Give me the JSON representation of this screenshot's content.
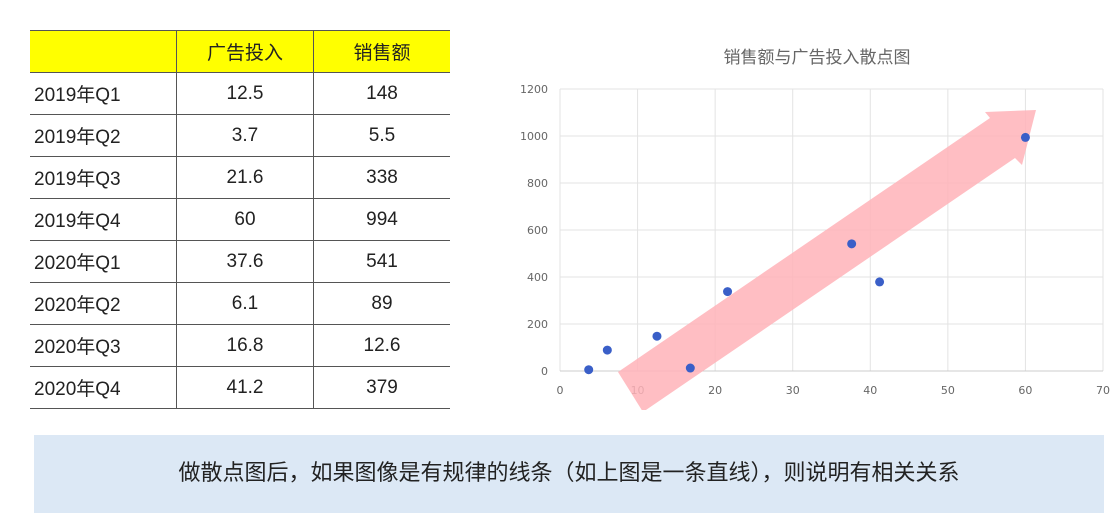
{
  "table": {
    "headers": [
      "",
      "广告投入",
      "销售额"
    ],
    "rows": [
      [
        "2019年Q1",
        "12.5",
        "148"
      ],
      [
        "2019年Q2",
        "3.7",
        "5.5"
      ],
      [
        "2019年Q3",
        "21.6",
        "338"
      ],
      [
        "2019年Q4",
        "60",
        "994"
      ],
      [
        "2020年Q1",
        "37.6",
        "541"
      ],
      [
        "2020年Q2",
        "6.1",
        "89"
      ],
      [
        "2020年Q3",
        "16.8",
        "12.6"
      ],
      [
        "2020年Q4",
        "41.2",
        "379"
      ]
    ]
  },
  "chart_data": {
    "type": "scatter",
    "title": "销售额与广告投入散点图",
    "xlim": [
      0,
      70
    ],
    "ylim": [
      0,
      1200
    ],
    "xticks": [
      "0",
      "10",
      "20",
      "30",
      "40",
      "50",
      "60",
      "70"
    ],
    "yticks": [
      "0",
      "200",
      "400",
      "600",
      "800",
      "1000",
      "1200"
    ],
    "grid": true,
    "point_color": "#3a5fc8",
    "annotation": "upward trend arrow",
    "arrow_color": "#ffb3b8",
    "points": [
      [
        12.5,
        148
      ],
      [
        3.7,
        5.5
      ],
      [
        21.6,
        338
      ],
      [
        60,
        994
      ],
      [
        37.6,
        541
      ],
      [
        6.1,
        89
      ],
      [
        16.8,
        12.6
      ],
      [
        41.2,
        379
      ]
    ]
  },
  "note": "做散点图后，如果图像是有规律的线条（如上图是一条直线），则说明有相关关系"
}
